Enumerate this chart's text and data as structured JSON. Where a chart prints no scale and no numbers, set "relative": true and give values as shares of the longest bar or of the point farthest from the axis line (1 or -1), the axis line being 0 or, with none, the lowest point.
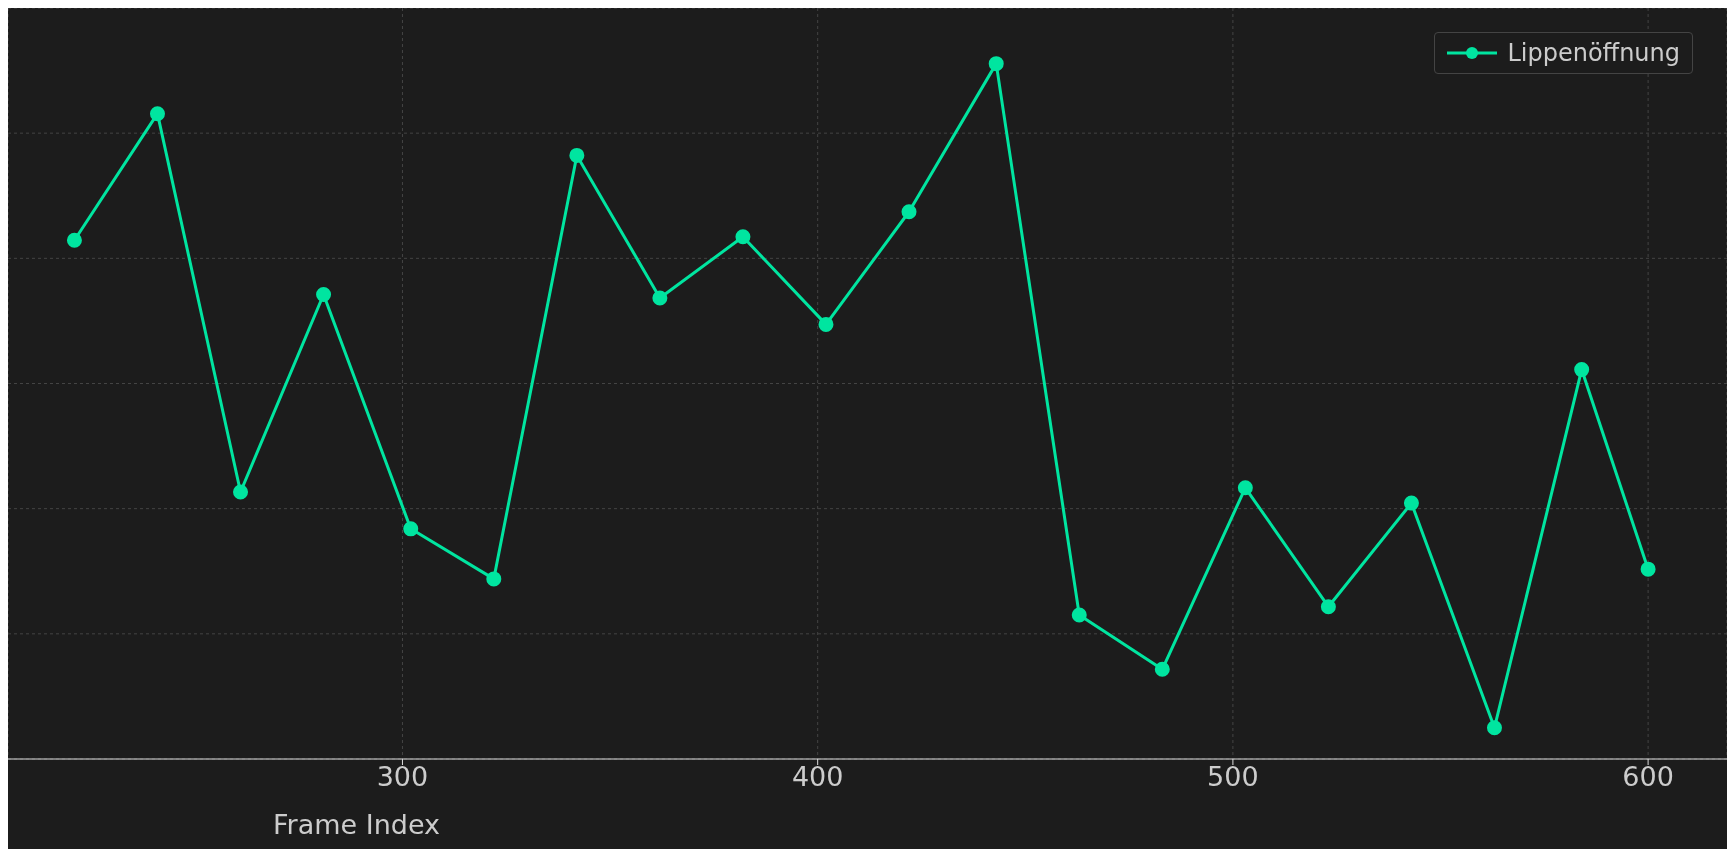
{
  "chart_data": {
    "type": "line",
    "xlabel": "Frame Index",
    "relative": true,
    "x": [
      221,
      241,
      261,
      281,
      302,
      322,
      342,
      362,
      382,
      402,
      422,
      443,
      463,
      483,
      503,
      523,
      543,
      563,
      584,
      600
    ],
    "series": [
      {
        "name": "Lippenöffnung",
        "color": "#00e5a0",
        "values": [
          0.746,
          0.928,
          0.384,
          0.668,
          0.331,
          0.259,
          0.868,
          0.663,
          0.751,
          0.625,
          0.787,
          1.0,
          0.207,
          0.129,
          0.39,
          0.219,
          0.368,
          0.045,
          0.56,
          0.273
        ]
      }
    ],
    "xlim": [
      205,
      619
    ],
    "xticks": [
      300,
      400,
      500,
      600
    ],
    "grid": true,
    "legend": "top right",
    "marker": "circle",
    "line_style": "solid"
  }
}
